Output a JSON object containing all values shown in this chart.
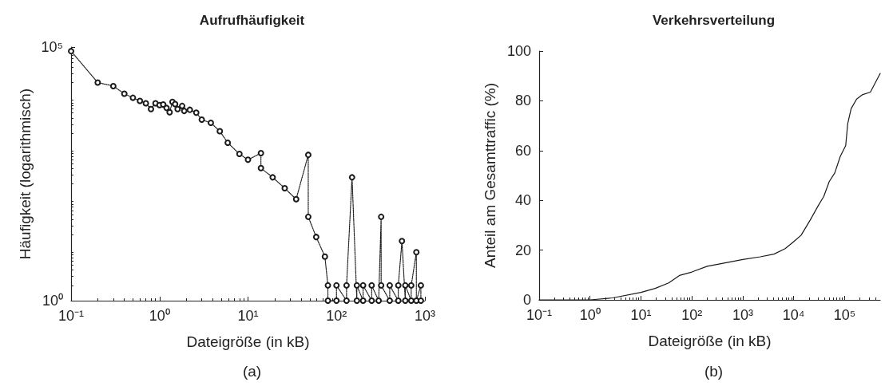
{
  "chart_data": [
    {
      "type": "line",
      "title": "Aufrufhäufigkeit",
      "xlabel": "Dateigröße (in kB)",
      "ylabel": "Häufigkeit (logarithmisch)",
      "log": "xy",
      "marker": "circle",
      "line_style": "dotted",
      "grid": false,
      "xlim": [
        0.1,
        1000
      ],
      "xticks": [
        {
          "value": 0.1,
          "label": "10⁻¹"
        },
        {
          "value": 1,
          "label": "10⁰"
        },
        {
          "value": 10,
          "label": "10¹"
        },
        {
          "value": 100,
          "label": "10²"
        },
        {
          "value": 1000,
          "label": "10³"
        }
      ],
      "ylim": [
        1,
        100000
      ],
      "yticks": [
        {
          "value": 1,
          "label": "10⁰"
        },
        {
          "value": 100000,
          "label": "10⁵"
        }
      ],
      "annotations": [
        "(a)"
      ],
      "series": [
        {
          "color": "#1a1a1a",
          "x": [
            0.1,
            0.2,
            0.3,
            0.4,
            0.5,
            0.6,
            0.7,
            0.8,
            0.9,
            1.0,
            1.1,
            1.2,
            1.3,
            1.4,
            1.5,
            1.6,
            1.8,
            1.9,
            2.2,
            2.6,
            3.0,
            3.8,
            4.8,
            5.9,
            8,
            10,
            14,
            14,
            19,
            26,
            35,
            48,
            48,
            59,
            74,
            80,
            80,
            100,
            100,
            130,
            130,
            150,
            170,
            170,
            200,
            200,
            250,
            250,
            300,
            320,
            320,
            400,
            400,
            500,
            500,
            550,
            600,
            600,
            700,
            700,
            800,
            800,
            900,
            900
          ],
          "values": [
            83000,
            20000,
            17000,
            12000,
            10000,
            8700,
            7800,
            6000,
            7800,
            7200,
            7400,
            6300,
            5200,
            8300,
            7500,
            6000,
            6900,
            5500,
            5800,
            5100,
            3700,
            3200,
            2200,
            1300,
            780,
            600,
            810,
            410,
            270,
            165,
            100,
            750,
            45,
            18,
            7.4,
            2,
            1,
            1,
            2,
            1,
            2,
            270,
            1,
            2,
            1,
            2,
            1,
            2,
            1,
            45,
            2,
            1,
            2,
            1,
            2,
            15,
            1,
            2,
            1,
            2,
            9,
            1,
            2,
            1
          ]
        }
      ]
    },
    {
      "type": "line",
      "title": "Verkehrsverteilung",
      "xlabel": "Dateigröße (in kB)",
      "ylabel": "Anteil am Gesamttraffic (%)",
      "log": "x",
      "marker": "none",
      "line_style": "solid",
      "grid": false,
      "xlim": [
        0.1,
        500000
      ],
      "xticks": [
        {
          "value": 0.1,
          "label": "10⁻¹"
        },
        {
          "value": 1,
          "label": "10⁰"
        },
        {
          "value": 10,
          "label": "10¹"
        },
        {
          "value": 100,
          "label": "10²"
        },
        {
          "value": 1000,
          "label": "10³"
        },
        {
          "value": 10000,
          "label": "10⁴"
        },
        {
          "value": 100000,
          "label": "10⁵"
        }
      ],
      "ylim": [
        0,
        100
      ],
      "yticks": [
        0,
        20,
        40,
        60,
        80,
        100
      ],
      "annotations": [
        "(b)"
      ],
      "series": [
        {
          "color": "#1a1a1a",
          "x": [
            0.1,
            1,
            2.8,
            10,
            19,
            35,
            57,
            100,
            200,
            430,
            1000,
            2200,
            4100,
            6800,
            10000,
            14000,
            21000,
            30000,
            39000,
            50000,
            64000,
            82000,
            105000,
            115000,
            134000,
            172000,
            221000,
            321000,
            500000
          ],
          "values": [
            0,
            0,
            0.8,
            3,
            4.6,
            6.8,
            9.8,
            11.2,
            13.5,
            14.8,
            16.2,
            17.3,
            18.4,
            20.6,
            23.4,
            26,
            32,
            37.7,
            41.6,
            47.6,
            51,
            57.6,
            62,
            70.8,
            76.8,
            80.7,
            82.4,
            83.5,
            91
          ]
        }
      ]
    }
  ]
}
